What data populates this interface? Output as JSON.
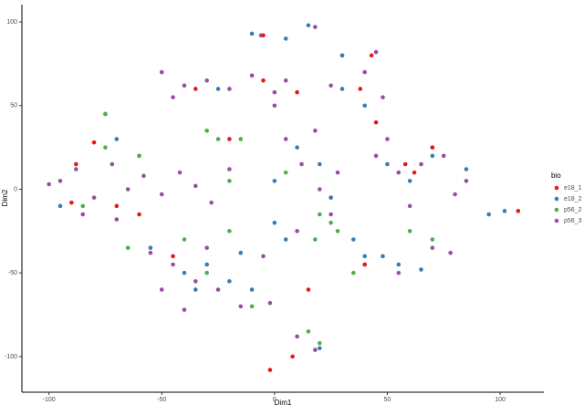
{
  "chart_data": {
    "type": "scatter",
    "x_label": "Dim1",
    "y_label": "Dim2",
    "legend_title": "bio",
    "legend_position": "right",
    "xlim": [
      -112,
      119.4
    ],
    "ylim": [
      -121.3,
      110.4
    ],
    "xticks": [
      -100,
      -50,
      0,
      50,
      100
    ],
    "yticks": [
      -100,
      -50,
      0,
      50,
      100
    ],
    "series": [
      {
        "name": "p56_3",
        "color": "#984ea3",
        "x": [
          -95,
          -88,
          -80,
          -72,
          -65,
          -58,
          -50,
          -42,
          -35,
          -28,
          -20,
          -85,
          -70,
          -60,
          -100,
          -50,
          -40,
          -30,
          -20,
          -10,
          0,
          5,
          -45,
          -55,
          -45,
          -35,
          -25,
          -15,
          -40,
          -30,
          -5,
          -50,
          5,
          12,
          20,
          25,
          28,
          18,
          45,
          55,
          65,
          75,
          85,
          60,
          50,
          70,
          80,
          40,
          55,
          70,
          78,
          30,
          40,
          48,
          25,
          45,
          10,
          18,
          -6,
          18,
          -75,
          -2,
          10,
          0
        ],
        "y": [
          5,
          12,
          -5,
          15,
          0,
          8,
          -3,
          10,
          2,
          -8,
          12,
          -15,
          -18,
          20,
          3,
          70,
          62,
          65,
          60,
          68,
          58,
          65,
          55,
          -38,
          -45,
          -55,
          -60,
          -70,
          -72,
          -35,
          -40,
          -60,
          30,
          15,
          0,
          -15,
          10,
          35,
          20,
          10,
          15,
          20,
          5,
          -10,
          30,
          25,
          -3,
          -45,
          -50,
          -35,
          -38,
          80,
          70,
          55,
          62,
          82,
          -88,
          -96,
          92,
          97,
          45,
          -68,
          -25,
          50
        ]
      },
      {
        "name": "e18_1",
        "color": "#e41a1c",
        "x": [
          -88,
          -80,
          -70,
          -60,
          -90,
          -35,
          -5,
          10,
          38,
          45,
          40,
          58,
          62,
          70,
          -5,
          -2,
          8,
          108,
          43,
          15,
          -45,
          25,
          -20
        ],
        "y": [
          15,
          28,
          -10,
          -15,
          -8,
          60,
          65,
          58,
          60,
          40,
          -45,
          15,
          10,
          25,
          92,
          -108,
          -100,
          -13,
          80,
          -60,
          -40,
          -5,
          30
        ]
      },
      {
        "name": "e18_2",
        "color": "#377eb8",
        "x": [
          -70,
          -95,
          -55,
          -40,
          -30,
          -20,
          -10,
          0,
          5,
          -35,
          0,
          10,
          20,
          25,
          40,
          55,
          65,
          35,
          50,
          60,
          70,
          85,
          95,
          102,
          30,
          40,
          15,
          5,
          -10,
          20,
          -25,
          -15,
          30,
          48
        ],
        "y": [
          30,
          -10,
          -35,
          -50,
          -45,
          -55,
          -60,
          -20,
          -30,
          -60,
          5,
          25,
          15,
          -5,
          -40,
          -45,
          -48,
          -30,
          15,
          5,
          20,
          12,
          -15,
          -13,
          60,
          50,
          98,
          90,
          93,
          -95,
          60,
          -38,
          80,
          -40
        ]
      },
      {
        "name": "p56_2",
        "color": "#4daf4a",
        "x": [
          -60,
          -75,
          -85,
          -30,
          -25,
          -15,
          -20,
          -40,
          -30,
          -20,
          20,
          25,
          28,
          18,
          15,
          20,
          -65,
          -10,
          60,
          70,
          -75,
          35,
          5
        ],
        "y": [
          20,
          25,
          -10,
          35,
          30,
          30,
          5,
          -30,
          -50,
          -25,
          -15,
          -20,
          -25,
          -30,
          -85,
          -92,
          -35,
          -70,
          -25,
          -30,
          45,
          -50,
          10
        ]
      }
    ]
  }
}
